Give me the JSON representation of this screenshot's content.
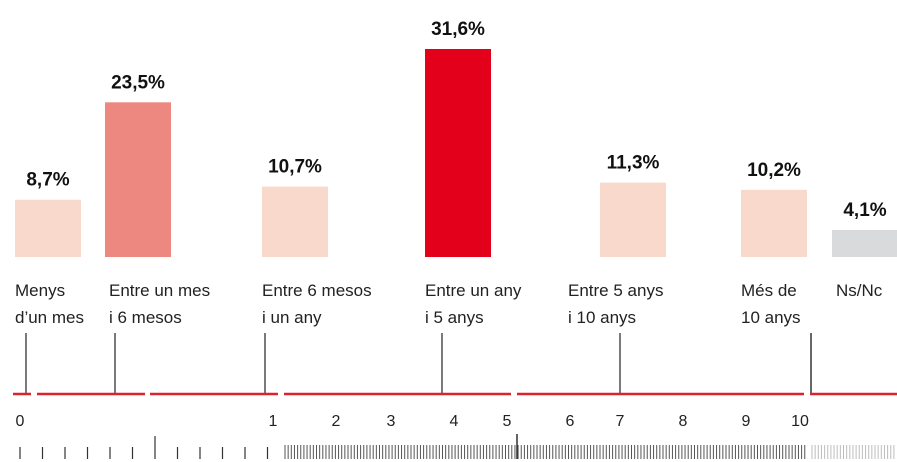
{
  "chart_data": {
    "type": "bar",
    "title": "",
    "xlabel": "",
    "ylabel": "",
    "ylim": [
      0,
      31.6
    ],
    "categories": [
      [
        "Menys",
        "d’un mes"
      ],
      [
        "Entre un mes",
        "i 6 mesos"
      ],
      [
        "Entre 6 mesos",
        "i un any"
      ],
      [
        "Entre un any",
        "i 5 anys"
      ],
      [
        "Entre 5 anys",
        "i 10 anys"
      ],
      [
        "Més de",
        "10 anys"
      ],
      [
        "Ns/Nc"
      ]
    ],
    "values": [
      8.7,
      23.5,
      10.7,
      31.6,
      11.3,
      10.2,
      4.1
    ],
    "value_labels": [
      "8,7%",
      "23,5%",
      "10,7%",
      "31,6%",
      "11,3%",
      "10,2%",
      "4,1%"
    ],
    "colors": [
      "#f8d9cb",
      "#ec8880",
      "#f8d9cb",
      "#e3001b",
      "#f8d9cb",
      "#f8d9cb",
      "#d9dadc"
    ],
    "timeline": {
      "tick_labels": [
        "0",
        "1",
        "2",
        "3",
        "4",
        "5",
        "6",
        "7",
        "8",
        "9",
        "10"
      ],
      "line_color": "#d9232e"
    }
  }
}
